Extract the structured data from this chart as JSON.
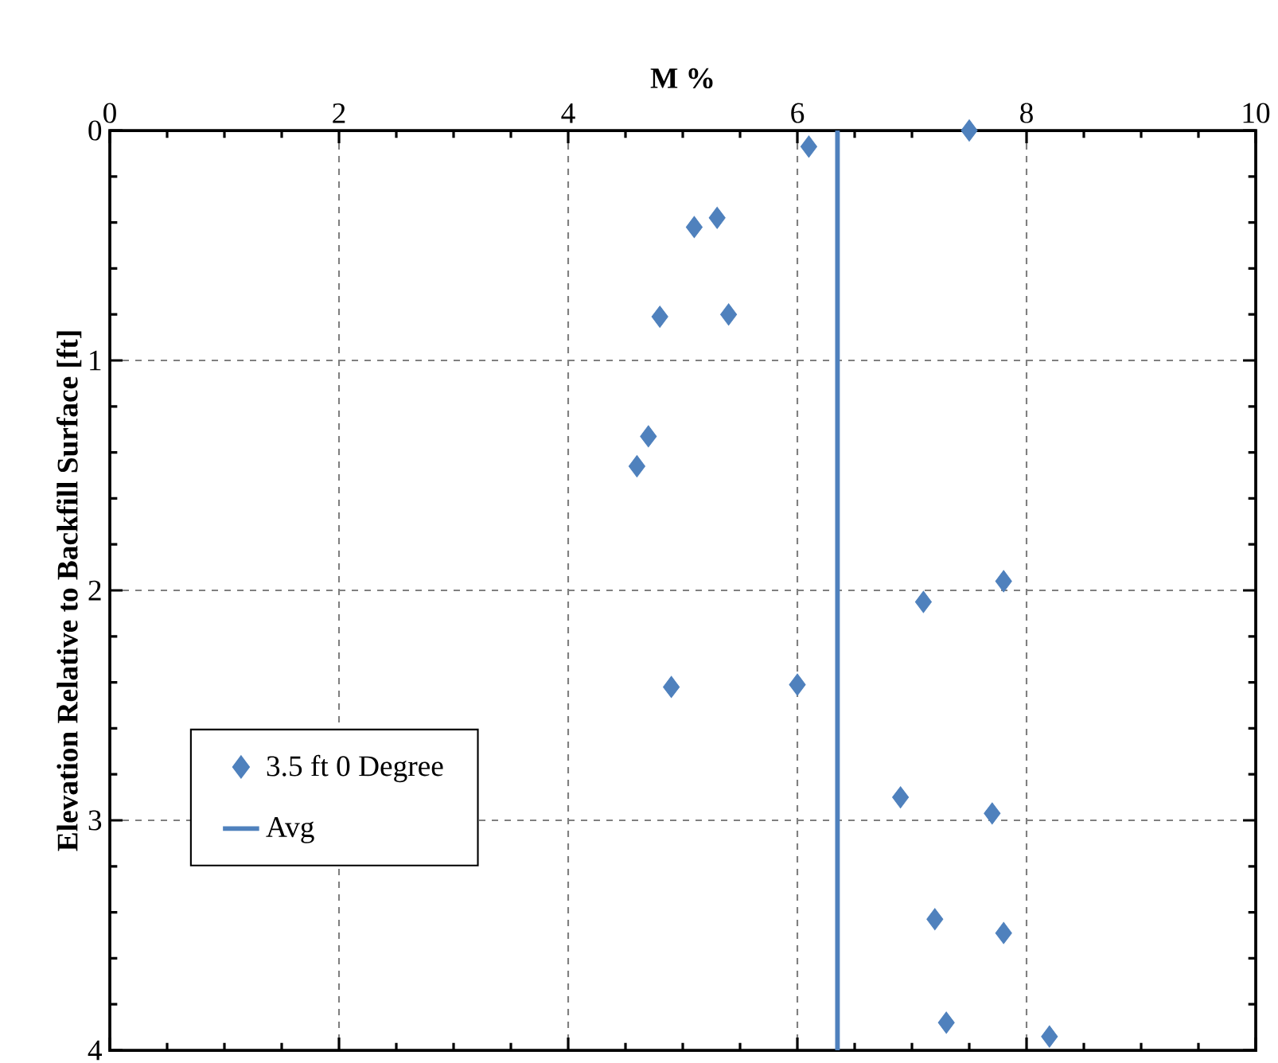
{
  "chart_data": {
    "type": "scatter",
    "xlabel": "M %",
    "ylabel": "Elevation Relative to Backfill Surface [ft]",
    "xlim": [
      0,
      10
    ],
    "xticks": [
      0,
      2,
      4,
      6,
      8,
      10
    ],
    "ylim": [
      4,
      0
    ],
    "yticks": [
      0,
      1,
      2,
      3,
      4
    ],
    "grid": true,
    "legend": "bottom left",
    "series": [
      {
        "name": "3.5 ft 0 Degree",
        "marker": "diamond",
        "color": "#4f81bd",
        "x": [
          7.5,
          6.1,
          5.3,
          5.1,
          4.8,
          5.4,
          4.7,
          4.6,
          7.8,
          7.1,
          4.9,
          6.0,
          6.9,
          7.7,
          7.2,
          7.8,
          7.3,
          8.2
        ],
        "values": [
          0,
          0.07,
          0.38,
          0.42,
          0.81,
          0.8,
          1.33,
          1.46,
          1.96,
          2.05,
          2.42,
          2.41,
          2.9,
          2.97,
          3.43,
          3.49,
          3.88,
          3.94
        ]
      },
      {
        "name": "Avg",
        "type": "line",
        "color": "#4f81bd",
        "x": [
          6.35,
          6.35
        ],
        "values": [
          0,
          4
        ]
      }
    ]
  }
}
